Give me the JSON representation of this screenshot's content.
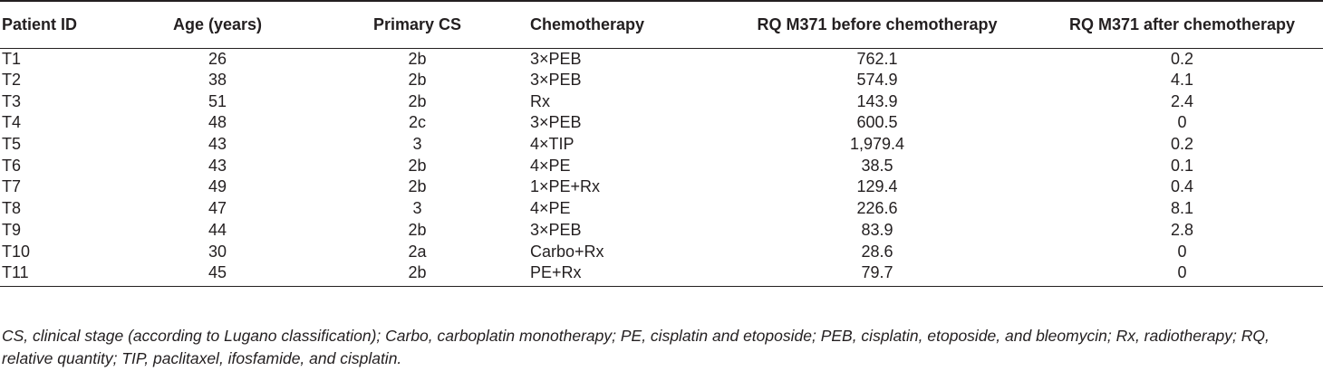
{
  "headers": {
    "patient_id": "Patient ID",
    "age": "Age (years)",
    "primary_cs": "Primary CS",
    "chemotherapy": "Chemotherapy",
    "rq_before": "RQ M371 before chemotherapy",
    "rq_after": "RQ M371 after chemotherapy"
  },
  "rows": [
    {
      "id": "T1",
      "age": "26",
      "cs": "2b",
      "chemo": "3×PEB",
      "before": "762.1",
      "after": "0.2"
    },
    {
      "id": "T2",
      "age": "38",
      "cs": "2b",
      "chemo": "3×PEB",
      "before": "574.9",
      "after": "4.1"
    },
    {
      "id": "T3",
      "age": "51",
      "cs": "2b",
      "chemo": "Rx",
      "before": "143.9",
      "after": "2.4"
    },
    {
      "id": "T4",
      "age": "48",
      "cs": "2c",
      "chemo": "3×PEB",
      "before": "600.5",
      "after": "0"
    },
    {
      "id": "T5",
      "age": "43",
      "cs": "3",
      "chemo": "4×TIP",
      "before": "1,979.4",
      "after": "0.2"
    },
    {
      "id": "T6",
      "age": "43",
      "cs": "2b",
      "chemo": "4×PE",
      "before": "38.5",
      "after": "0.1"
    },
    {
      "id": "T7",
      "age": "49",
      "cs": "2b",
      "chemo": "1×PE+Rx",
      "before": "129.4",
      "after": "0.4"
    },
    {
      "id": "T8",
      "age": "47",
      "cs": "3",
      "chemo": "4×PE",
      "before": "226.6",
      "after": "8.1"
    },
    {
      "id": "T9",
      "age": "44",
      "cs": "2b",
      "chemo": "3×PEB",
      "before": "83.9",
      "after": "2.8"
    },
    {
      "id": "T10",
      "age": "30",
      "cs": "2a",
      "chemo": "Carbo+Rx",
      "before": "28.6",
      "after": "0"
    },
    {
      "id": "T11",
      "age": "45",
      "cs": "2b",
      "chemo": "PE+Rx",
      "before": "79.7",
      "after": "0"
    }
  ],
  "footnote": "CS, clinical stage (according to Lugano classification); Carbo, carboplatin monotherapy; PE, cisplatin and etoposide; PEB, cisplatin, etoposide, and bleomycin; Rx, radiotherapy; RQ, relative quantity; TIP, paclitaxel, ifosfamide, and cisplatin."
}
